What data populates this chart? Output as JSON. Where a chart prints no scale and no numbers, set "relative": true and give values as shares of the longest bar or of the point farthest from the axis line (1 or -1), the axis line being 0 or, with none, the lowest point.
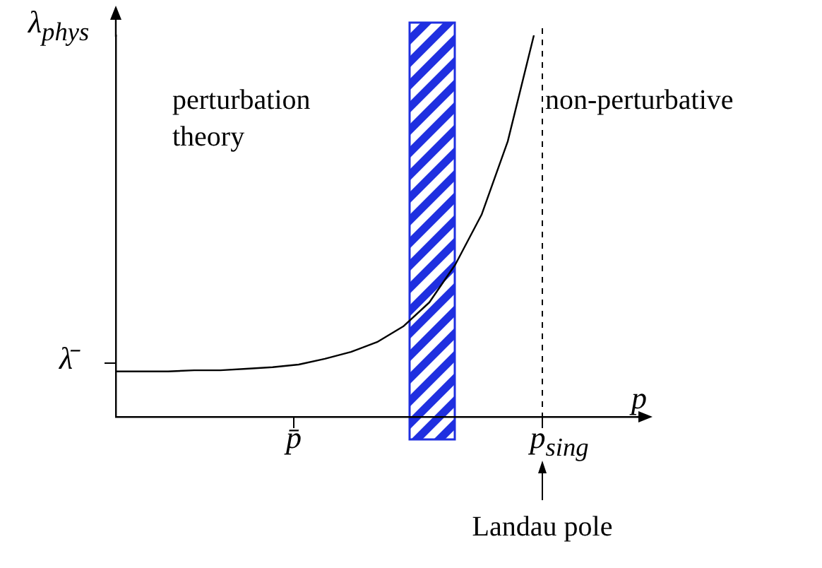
{
  "chart_data": {
    "type": "line",
    "relative": true,
    "ylabel": "λ$_{phys}$",
    "xlabel": "p",
    "categories": [
      null,
      null,
      null,
      null,
      null,
      null,
      null,
      null,
      null,
      null,
      null,
      null,
      null,
      null,
      null,
      null,
      null,
      null,
      null,
      null,
      null
    ],
    "series": [
      {
        "color": "#000000",
        "values": [
          0.119,
          0.119,
          0.119,
          0.122,
          0.122,
          0.126,
          0.13,
          0.137,
          0.152,
          0.17,
          0.196,
          0.237,
          0.3,
          0.4,
          0.53,
          0.722,
          1.0,
          null,
          null,
          null,
          null
        ]
      }
    ],
    "annotations": [
      "λ̄",
      "p̄",
      "p$_{sing}$",
      "perturbation\ntheory",
      "non-perturbative",
      "Landau pole"
    ],
    "grid": false,
    "legend": false,
    "marker": "none",
    "line_style": "solid"
  }
}
